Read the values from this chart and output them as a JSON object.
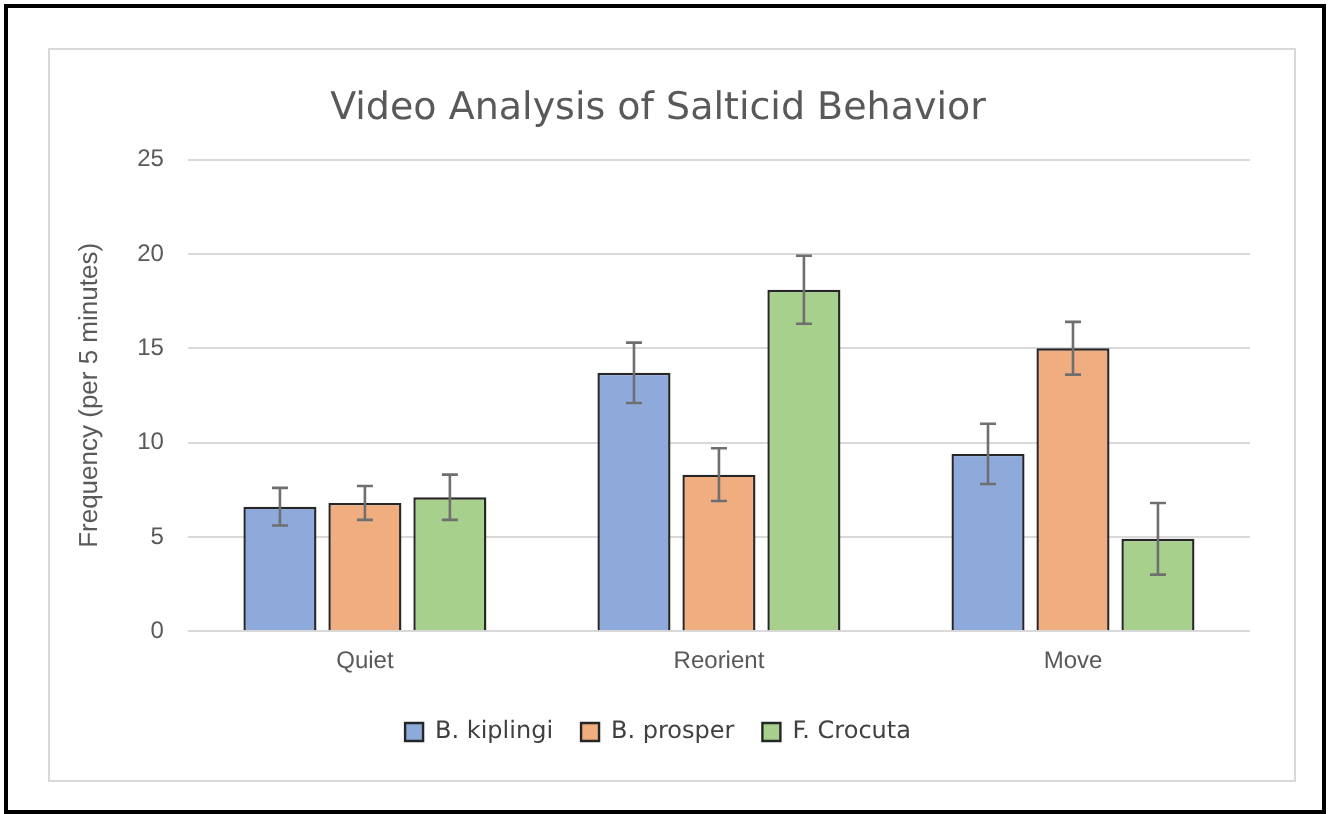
{
  "chart_data": {
    "type": "bar",
    "title": "Video Analysis of Salticid Behavior",
    "ylabel": "Frequency (per 5 minutes)",
    "categories": [
      "Quiet",
      "Reorient",
      "Move"
    ],
    "series": [
      {
        "name": "B. kiplingi",
        "color": "#8eaadb",
        "values": [
          6.6,
          13.7,
          9.4
        ],
        "errors": [
          1.0,
          1.6,
          1.6
        ]
      },
      {
        "name": "B. prosper",
        "color": "#f0ae80",
        "values": [
          6.8,
          8.3,
          15.0
        ],
        "errors": [
          0.9,
          1.4,
          1.4
        ]
      },
      {
        "name": "F. Crocuta",
        "color": "#a8d08d",
        "values": [
          7.1,
          18.1,
          4.9
        ],
        "errors": [
          1.2,
          1.8,
          1.9
        ]
      }
    ],
    "ylim": [
      0,
      25
    ],
    "yticks": [
      0,
      5,
      10,
      15,
      20,
      25
    ],
    "grid": "y",
    "legend": "bottom"
  }
}
